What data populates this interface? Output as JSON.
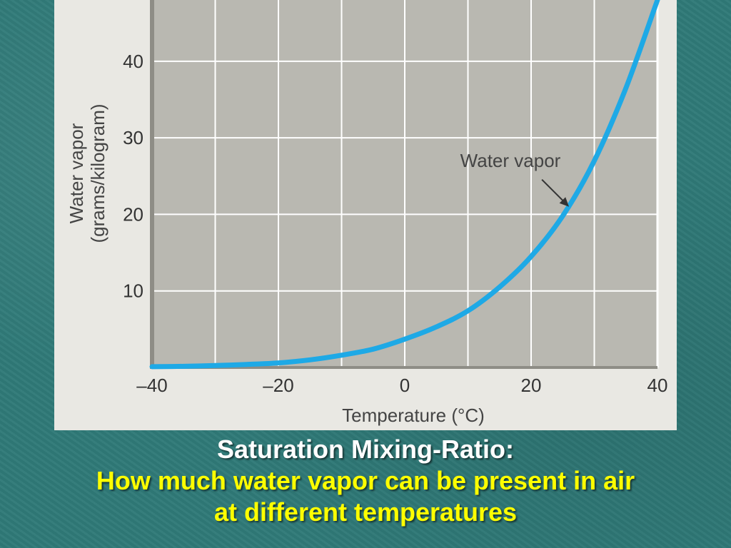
{
  "chart_data": {
    "type": "line",
    "xlabel": "Temperature (°C)",
    "ylabel_line1": "Water vapor",
    "ylabel_line2": "(grams/kilogram)",
    "xlim": [
      -40,
      40
    ],
    "ylim": [
      0,
      48
    ],
    "x_ticks": [
      -40,
      -20,
      0,
      20,
      40
    ],
    "x_tick_labels": [
      "–40",
      "–20",
      "0",
      "20",
      "40"
    ],
    "y_ticks": [
      10,
      20,
      30,
      40
    ],
    "y_tick_labels": [
      "10",
      "20",
      "30",
      "40"
    ],
    "grid": true,
    "series": [
      {
        "name": "Water vapor",
        "color": "#1ea9e6",
        "x": [
          -40,
          -35,
          -30,
          -25,
          -20,
          -15,
          -10,
          -5,
          0,
          5,
          10,
          15,
          20,
          25,
          30,
          35,
          40
        ],
        "y": [
          0.1,
          0.15,
          0.25,
          0.4,
          0.6,
          1.0,
          1.6,
          2.4,
          3.7,
          5.3,
          7.4,
          10.5,
          14.5,
          19.8,
          27.0,
          36.5,
          48.0
        ]
      }
    ],
    "annotations": [
      {
        "text": "Water vapor",
        "points_to": {
          "x": 26,
          "y": 21
        }
      }
    ]
  },
  "caption": {
    "title": "Saturation Mixing-Ratio:",
    "line1": "How much water vapor can be present in air",
    "line2": "at different temperatures"
  },
  "colors": {
    "plot_background": "#b9b8b1",
    "panel_background": "#e9e8e3",
    "grid": "#ffffff",
    "curve": "#1ea9e6",
    "caption_title": "#ffffff",
    "caption_subtitle": "#ffff00",
    "slide_background": "#2f7a78"
  }
}
